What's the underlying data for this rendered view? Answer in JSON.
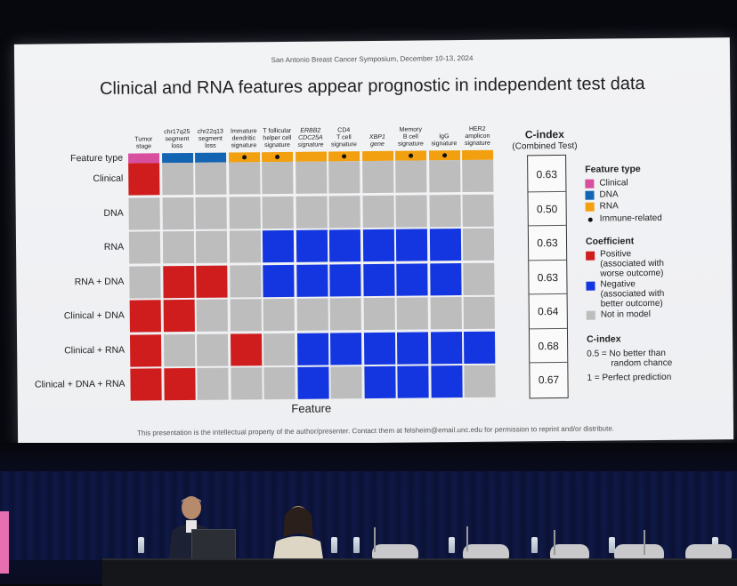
{
  "slide": {
    "conference": "San Antonio Breast Cancer Symposium, December 10-13, 2024",
    "title": "Clinical and RNA features appear prognostic in independent test data",
    "x_axis_label": "Feature",
    "footer": "This presentation is the intellectual property of the author/presenter. Contact them at felsheim@email.unc.edu for permission to reprint and/or distribute.",
    "feature_type_row_label": "Feature type"
  },
  "colors": {
    "clinical": "#d94f9f",
    "dna": "#1464b4",
    "rna": "#f2a00f",
    "positive": "#cf1c1c",
    "negative": "#1436e0",
    "not_in_model": "#bdbdbd"
  },
  "columns": [
    {
      "label_lines": [
        "Tumor",
        "stage"
      ],
      "type": "clinical",
      "immune": false,
      "italic": false
    },
    {
      "label_lines": [
        "chr17q25",
        "segment",
        "loss"
      ],
      "type": "dna",
      "immune": false,
      "italic": false
    },
    {
      "label_lines": [
        "chr22q13",
        "segment",
        "loss"
      ],
      "type": "dna",
      "immune": false,
      "italic": false
    },
    {
      "label_lines": [
        "Immature",
        "dendritic",
        "signature"
      ],
      "type": "rna",
      "immune": true,
      "italic": false
    },
    {
      "label_lines": [
        "T follicular",
        "helper cell",
        "signature"
      ],
      "type": "rna",
      "immune": true,
      "italic": false
    },
    {
      "label_lines": [
        "ERBB2",
        "CDC25A",
        "signature"
      ],
      "type": "rna",
      "immune": false,
      "italic": true
    },
    {
      "label_lines": [
        "CD4",
        "T cell",
        "signature"
      ],
      "type": "rna",
      "immune": true,
      "italic": false
    },
    {
      "label_lines": [
        "XBP1",
        "gene"
      ],
      "type": "rna",
      "immune": false,
      "italic": true
    },
    {
      "label_lines": [
        "Memory",
        "B cell",
        "signature"
      ],
      "type": "rna",
      "immune": true,
      "italic": false
    },
    {
      "label_lines": [
        "IgG",
        "signature"
      ],
      "type": "rna",
      "immune": true,
      "italic": false
    },
    {
      "label_lines": [
        "HER2",
        "amplicon",
        "signature"
      ],
      "type": "rna",
      "immune": false,
      "italic": false
    }
  ],
  "rows": [
    {
      "label": "Clinical",
      "cells": [
        "P",
        "N0",
        "N0",
        "N0",
        "N0",
        "N0",
        "N0",
        "N0",
        "N0",
        "N0",
        "N0"
      ],
      "cindex": "0.63"
    },
    {
      "label": "DNA",
      "cells": [
        "N0",
        "N0",
        "N0",
        "N0",
        "N0",
        "N0",
        "N0",
        "N0",
        "N0",
        "N0",
        "N0"
      ],
      "cindex": "0.50"
    },
    {
      "label": "RNA",
      "cells": [
        "N0",
        "N0",
        "N0",
        "N0",
        "N",
        "N",
        "N",
        "N",
        "N",
        "N",
        "N0"
      ],
      "cindex": "0.63"
    },
    {
      "label": "RNA + DNA",
      "cells": [
        "N0",
        "P",
        "P",
        "N0",
        "N",
        "N",
        "N",
        "N",
        "N",
        "N",
        "N0"
      ],
      "cindex": "0.63"
    },
    {
      "label": "Clinical + DNA",
      "cells": [
        "P",
        "P",
        "N0",
        "N0",
        "N0",
        "N0",
        "N0",
        "N0",
        "N0",
        "N0",
        "N0"
      ],
      "cindex": "0.64"
    },
    {
      "label": "Clinical + RNA",
      "cells": [
        "P",
        "N0",
        "N0",
        "P",
        "N0",
        "N",
        "N",
        "N",
        "N",
        "N",
        "N"
      ],
      "cindex": "0.68"
    },
    {
      "label": "Clinical + DNA + RNA",
      "cells": [
        "P",
        "P",
        "N0",
        "N0",
        "N0",
        "N",
        "N0",
        "N",
        "N",
        "N",
        "N0"
      ],
      "cindex": "0.67"
    }
  ],
  "cindex_panel": {
    "title": "C-index",
    "subtitle": "(Combined Test)"
  },
  "legend": {
    "feature_type_heading": "Feature type",
    "clinical": "Clinical",
    "dna": "DNA",
    "rna": "RNA",
    "immune": "Immune-related",
    "coefficient_heading": "Coefficient",
    "positive_lines": [
      "Positive",
      "(associated with",
      "worse outcome)"
    ],
    "negative_lines": [
      "Negative",
      "(associated with",
      "better outcome)"
    ],
    "not_in_model": "Not in model",
    "cindex_heading": "C-index",
    "cindex_note1_lines": [
      "0.5 = No better than",
      "random chance"
    ],
    "cindex_note2": "1 = Perfect prediction"
  }
}
